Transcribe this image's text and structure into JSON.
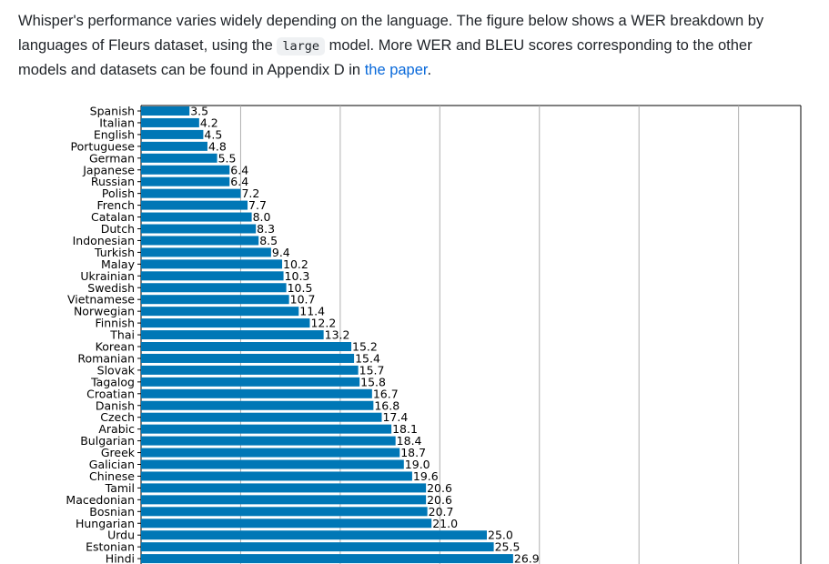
{
  "intro": {
    "part1": "Whisper's performance varies widely depending on the language. The figure below shows a WER breakdown by languages of Fleurs dataset, using the ",
    "code": "large",
    "part2": " model. More WER and BLEU scores corresponding to the other models and datasets can be found in Appendix D in ",
    "link": "the paper",
    "part3": "."
  },
  "chart_data": {
    "type": "bar",
    "orientation": "horizontal",
    "title": "",
    "xlabel": "",
    "ylabel": "",
    "bar_color": "#0077b6",
    "grid": true,
    "xlim": [
      0,
      75
    ],
    "categories": [
      "Spanish",
      "Italian",
      "English",
      "Portuguese",
      "German",
      "Japanese",
      "Russian",
      "Polish",
      "French",
      "Catalan",
      "Dutch",
      "Indonesian",
      "Turkish",
      "Malay",
      "Ukrainian",
      "Swedish",
      "Vietnamese",
      "Norwegian",
      "Finnish",
      "Thai",
      "Korean",
      "Romanian",
      "Slovak",
      "Tagalog",
      "Croatian",
      "Danish",
      "Czech",
      "Arabic",
      "Bulgarian",
      "Greek",
      "Galician",
      "Chinese",
      "Tamil",
      "Macedonian",
      "Bosnian",
      "Hungarian",
      "Urdu",
      "Estonian",
      "Hindi"
    ],
    "values": [
      3.5,
      4.2,
      4.5,
      4.8,
      5.5,
      6.4,
      6.4,
      7.2,
      7.7,
      8.0,
      8.3,
      8.5,
      9.4,
      10.2,
      10.3,
      10.5,
      10.7,
      11.4,
      12.2,
      13.2,
      15.2,
      15.4,
      15.7,
      15.8,
      16.7,
      16.8,
      17.4,
      18.1,
      18.4,
      18.7,
      19.0,
      19.6,
      20.6,
      20.6,
      20.7,
      21.0,
      25.0,
      25.5,
      26.9
    ],
    "value_labels": [
      "3.5",
      "4.2",
      "4.5",
      "4.8",
      "5.5",
      "6.4",
      "6.4",
      "7.2",
      "7.7",
      "8.0",
      "8.3",
      "8.5",
      "9.4",
      "10.2",
      "10.3",
      "10.5",
      "10.7",
      "11.4",
      "12.2",
      "13.2",
      "15.2",
      "15.4",
      "15.7",
      "15.8",
      "16.7",
      "16.8",
      "17.4",
      "18.1",
      "18.4",
      "18.7",
      "19.0",
      "19.6",
      "20.6",
      "20.6",
      "20.7",
      "21.0",
      "25.0",
      "25.5",
      "26.9"
    ]
  }
}
